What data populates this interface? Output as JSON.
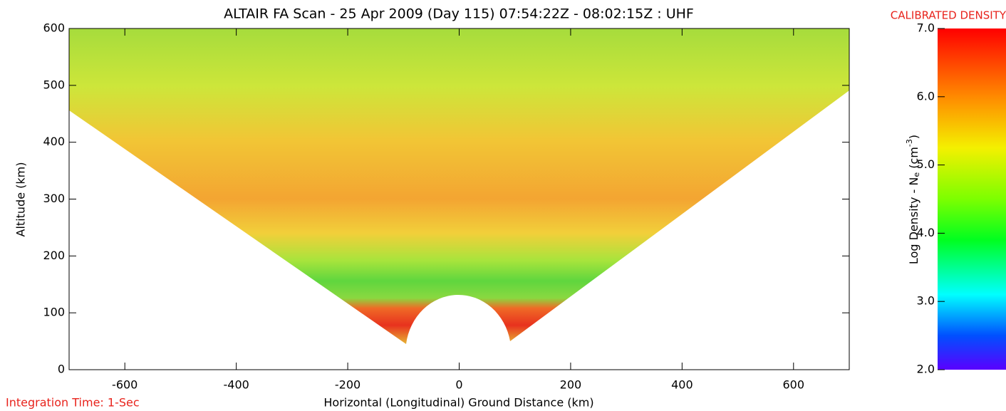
{
  "chart_data": {
    "type": "image",
    "title": "ALTAIR FA Scan - 25 Apr 2009 (Day 115) 07:54:22Z - 08:02:15Z : UHF",
    "xlabel": "Horizontal (Longitudinal) Ground Distance (km)",
    "ylabel": "Altitude (km)",
    "annotation": "Integration Time: 1-Sec",
    "xlim": [
      -700,
      700
    ],
    "ylim": [
      0,
      600
    ],
    "xticks": [
      -600,
      -400,
      -200,
      0,
      200,
      400,
      600
    ],
    "yticks": [
      0,
      100,
      200,
      300,
      400,
      500,
      600
    ],
    "colorbar": {
      "title": "CALIBRATED DENSITY",
      "label": [
        "Log Density - N",
        "e",
        " (cm",
        "-3",
        ")"
      ],
      "lim": [
        2,
        7
      ],
      "ticks": [
        {
          "value": 2,
          "label": "2.0"
        },
        {
          "value": 3,
          "label": "3.0"
        },
        {
          "value": 4,
          "label": "4.0"
        },
        {
          "value": 5,
          "label": "5.0"
        },
        {
          "value": 6,
          "label": "6.0"
        },
        {
          "value": 7,
          "label": "7.0"
        }
      ]
    }
  }
}
